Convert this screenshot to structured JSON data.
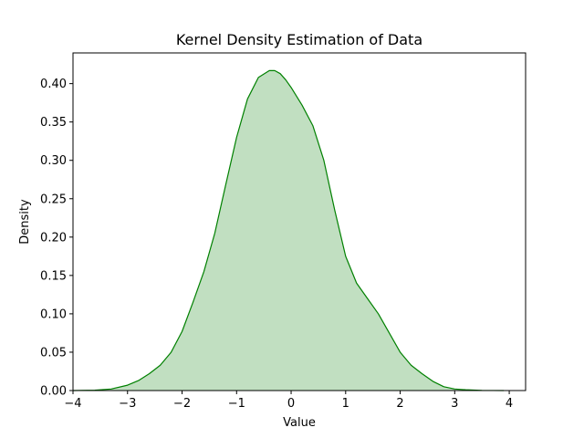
{
  "chart_data": {
    "type": "area",
    "title": "Kernel Density Estimation of Data",
    "xlabel": "Value",
    "ylabel": "Density",
    "xlim": [
      -4.0,
      4.3
    ],
    "ylim": [
      0.0,
      0.44
    ],
    "xticks": [
      -4,
      -3,
      -2,
      -1,
      0,
      1,
      2,
      3,
      4
    ],
    "xtick_labels": [
      "−4",
      "−3",
      "−2",
      "−1",
      "0",
      "1",
      "2",
      "3",
      "4"
    ],
    "yticks": [
      0.0,
      0.05,
      0.1,
      0.15,
      0.2,
      0.25,
      0.3,
      0.35,
      0.4
    ],
    "ytick_labels": [
      "0.00",
      "0.05",
      "0.10",
      "0.15",
      "0.20",
      "0.25",
      "0.30",
      "0.35",
      "0.40"
    ],
    "grid": false,
    "line_color": "#008000",
    "fill_color": "#c1dfc1",
    "series": [
      {
        "x": [
          -4.0,
          -3.6,
          -3.3,
          -3.0,
          -2.8,
          -2.6,
          -2.4,
          -2.2,
          -2.0,
          -1.8,
          -1.6,
          -1.4,
          -1.2,
          -1.0,
          -0.8,
          -0.6,
          -0.4,
          -0.3,
          -0.2,
          -0.1,
          0.0,
          0.2,
          0.4,
          0.6,
          0.8,
          1.0,
          1.2,
          1.4,
          1.6,
          1.8,
          2.0,
          2.2,
          2.4,
          2.6,
          2.8,
          3.0,
          3.2,
          3.5,
          3.9
        ],
        "y": [
          0.0,
          0.0005,
          0.002,
          0.007,
          0.013,
          0.022,
          0.033,
          0.05,
          0.077,
          0.115,
          0.155,
          0.205,
          0.268,
          0.33,
          0.38,
          0.408,
          0.417,
          0.417,
          0.413,
          0.405,
          0.395,
          0.372,
          0.345,
          0.3,
          0.235,
          0.175,
          0.14,
          0.12,
          0.1,
          0.075,
          0.05,
          0.033,
          0.022,
          0.012,
          0.005,
          0.002,
          0.001,
          0.0002,
          0.0
        ]
      }
    ]
  }
}
